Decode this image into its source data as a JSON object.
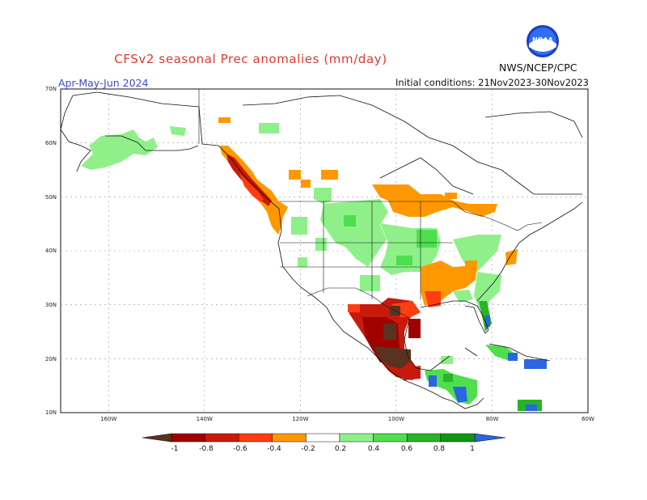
{
  "header": {
    "title": "CFSv2 seasonal Prec anomalies (mm/day)",
    "period": "Apr-May-Jun 2024",
    "initial_conditions": "Initial conditions: 21Nov2023-30Nov2023",
    "agency": "NWS/NCEP/CPC",
    "logo_text": "NOAA"
  },
  "map": {
    "lat_labels": [
      "70N",
      "60N",
      "50N",
      "40N",
      "30N",
      "20N",
      "10N"
    ],
    "lon_labels": [
      "160W",
      "140W",
      "120W",
      "100W",
      "80W",
      "60W"
    ],
    "extent": {
      "lon": [
        -170,
        -60
      ],
      "lat": [
        10,
        70
      ]
    }
  },
  "colorbar": {
    "labels": [
      "-1",
      "-0.8",
      "-0.6",
      "-0.4",
      "-0.2",
      "0.2",
      "0.4",
      "0.6",
      "0.8",
      "1"
    ],
    "colors": [
      "#5a3320",
      "#a00000",
      "#c81a0a",
      "#ff3d12",
      "#ff9800",
      "#ffffff",
      "#8ff08a",
      "#4ede4e",
      "#28b428",
      "#129612",
      "#2a66e0"
    ]
  }
}
